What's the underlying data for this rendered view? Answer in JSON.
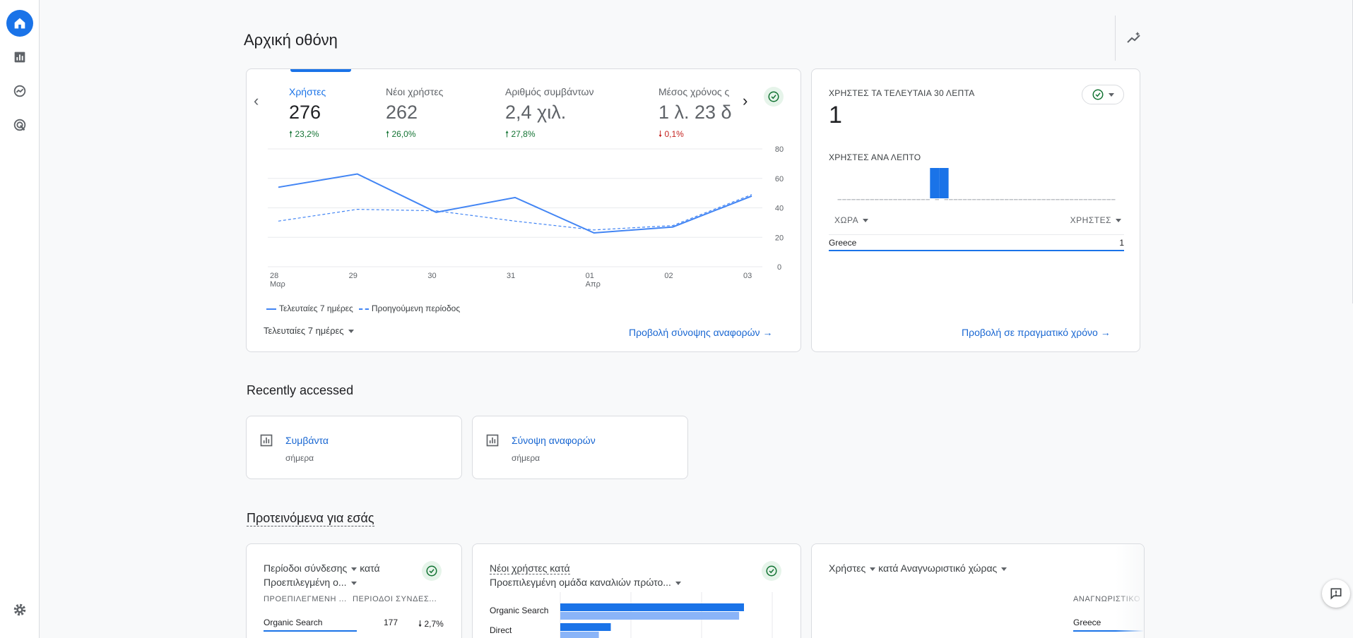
{
  "page_title": "Αρχική οθόνη",
  "overview": {
    "metrics": [
      {
        "label": "Χρήστες",
        "value": "276",
        "delta": "23,2%",
        "direction": "up"
      },
      {
        "label": "Νέοι χρήστες",
        "value": "262",
        "delta": "26,0%",
        "direction": "up"
      },
      {
        "label": "Αριθμός συμβάντων",
        "value": "2,4 χιλ.",
        "delta": "27,8%",
        "direction": "up"
      },
      {
        "label": "Μέσος χρόνος ς",
        "value": "1 λ. 23 δ.",
        "delta": "0,1%",
        "direction": "down"
      }
    ],
    "legend_current": "Τελευταίες 7 ημέρες",
    "legend_previous": "Προηγούμενη περίοδος",
    "date_range": "Τελευταίες 7 ημέρες",
    "view_link": "Προβολή σύνοψης αναφορών"
  },
  "chart_data": {
    "type": "line",
    "categories": [
      "28",
      "29",
      "30",
      "31",
      "01",
      "02",
      "03"
    ],
    "category_sublabels": [
      "Μαρ",
      "",
      "",
      "",
      "Απρ",
      "",
      ""
    ],
    "y_ticks": [
      "80",
      "60",
      "40",
      "20",
      "0"
    ],
    "ylim": [
      0,
      80
    ],
    "series": [
      {
        "name": "Τελευταίες 7 ημέρες",
        "style": "solid",
        "color": "#4285f4",
        "values": [
          54,
          63,
          37,
          47,
          23,
          27,
          48
        ]
      },
      {
        "name": "Προηγούμενη περίοδος",
        "style": "dashed",
        "color": "#4285f4",
        "values": [
          31,
          39,
          38,
          31,
          25,
          28,
          49
        ]
      }
    ],
    "grid": true
  },
  "realtime": {
    "title": "ΧΡΗΣΤΕΣ ΤΑ ΤΕΛΕΥΤΑΙΑ 30 ΛΕΠΤΑ",
    "value": "1",
    "subtitle": "ΧΡΗΣΤΕΣ ΑΝΑ ΛΕΠΤΟ",
    "minute_bars": [
      0,
      0,
      0,
      0,
      0,
      0,
      0,
      0,
      0,
      0,
      0,
      0,
      0,
      0,
      0,
      0,
      0,
      0,
      0,
      0,
      1,
      0,
      1,
      0,
      0,
      0,
      0,
      0,
      0,
      0,
      0,
      0,
      0,
      0,
      0,
      0,
      0,
      0,
      0,
      0,
      0,
      0,
      0,
      0,
      0,
      0,
      0,
      0,
      0,
      0,
      0,
      0,
      0,
      0,
      0,
      0,
      0,
      0,
      0,
      0
    ],
    "col_country": "ΧΩΡΑ",
    "col_users": "ΧΡΗΣΤΕΣ",
    "rows": [
      {
        "country": "Greece",
        "users": "1"
      }
    ],
    "view_link": "Προβολή σε πραγματικό χρόνο"
  },
  "recent": {
    "title": "Recently accessed",
    "items": [
      {
        "name": "Συμβάντα",
        "when": "σήμερα"
      },
      {
        "name": "Σύνοψη αναφορών",
        "when": "σήμερα"
      }
    ]
  },
  "suggested": {
    "title": "Προτεινόμενα για εσάς",
    "card1": {
      "line1": "Περίοδοι σύνδεσης",
      "line1_b": "κατά",
      "line2": "Προεπιλεγμένη ο...",
      "col1": "ΠΡΟΕΠΙΛΕΓΜΕΝΗ ...",
      "col2": "ΠΕΡΙΟΔΟΙ ΣΥΝΔΕΣ...",
      "row_name": "Organic Search",
      "row_value": "177",
      "row_delta": "2,7%"
    },
    "card2": {
      "line1": "Νέοι χρήστες κατά",
      "line2": "Προεπιλεγμένη ομάδα καναλιών πρώτο...",
      "bars": [
        {
          "label": "Organic Search",
          "current": 262,
          "previous": 255
        },
        {
          "label": "Direct",
          "current": 72,
          "previous": 55
        }
      ]
    },
    "card3": {
      "line1": "Χρήστες",
      "line1_b": "κατά Αναγνωριστικό χώρας",
      "col": "ΑΝΑΓΝΩΡΙΣΤΙΚΟ",
      "row_name": "Greece"
    }
  }
}
